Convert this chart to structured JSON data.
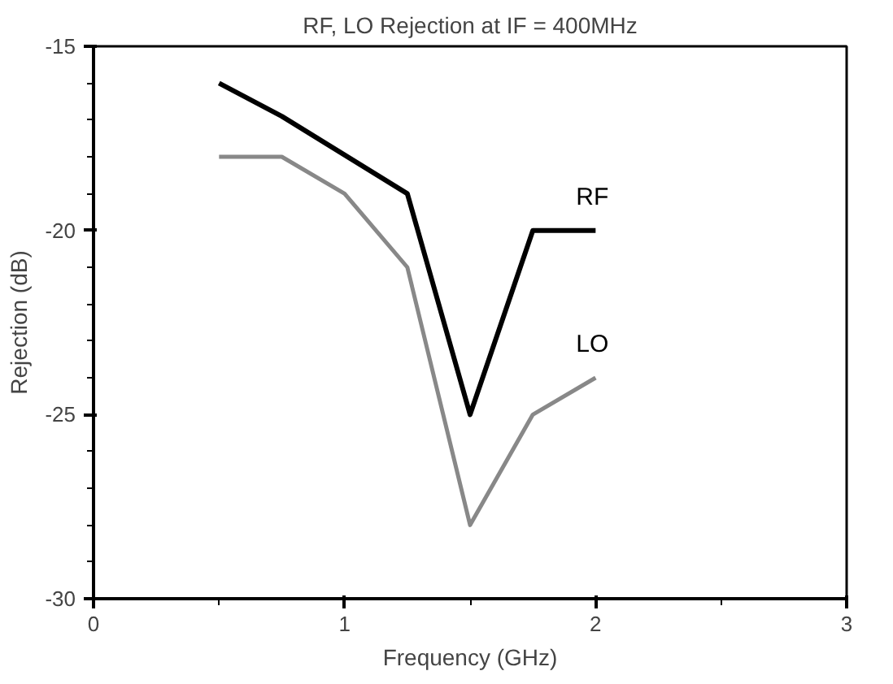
{
  "chart_data": {
    "type": "line",
    "title": "RF, LO Rejection at IF = 400MHz",
    "xlabel": "Frequency (GHz)",
    "ylabel": "Rejection (dB)",
    "xlim": [
      0,
      3
    ],
    "xticks": [
      0,
      1,
      2,
      3
    ],
    "ylim": [
      -30,
      -15
    ],
    "yticks": [
      -30,
      -25,
      -20,
      -15
    ],
    "grid": false,
    "marker": "none",
    "series": [
      {
        "name": "RF",
        "color": "#000000",
        "x": [
          0.5,
          0.75,
          1.25,
          1.5,
          1.75,
          2.0
        ],
        "values": [
          -16,
          -16.9,
          -19,
          -25,
          -20,
          -20
        ]
      },
      {
        "name": "LO",
        "color": "#888888",
        "x": [
          0.5,
          0.75,
          1.0,
          1.25,
          1.5,
          1.75,
          2.0
        ],
        "values": [
          -18,
          -18,
          -19,
          -21,
          -28,
          -25,
          -24
        ]
      }
    ]
  }
}
